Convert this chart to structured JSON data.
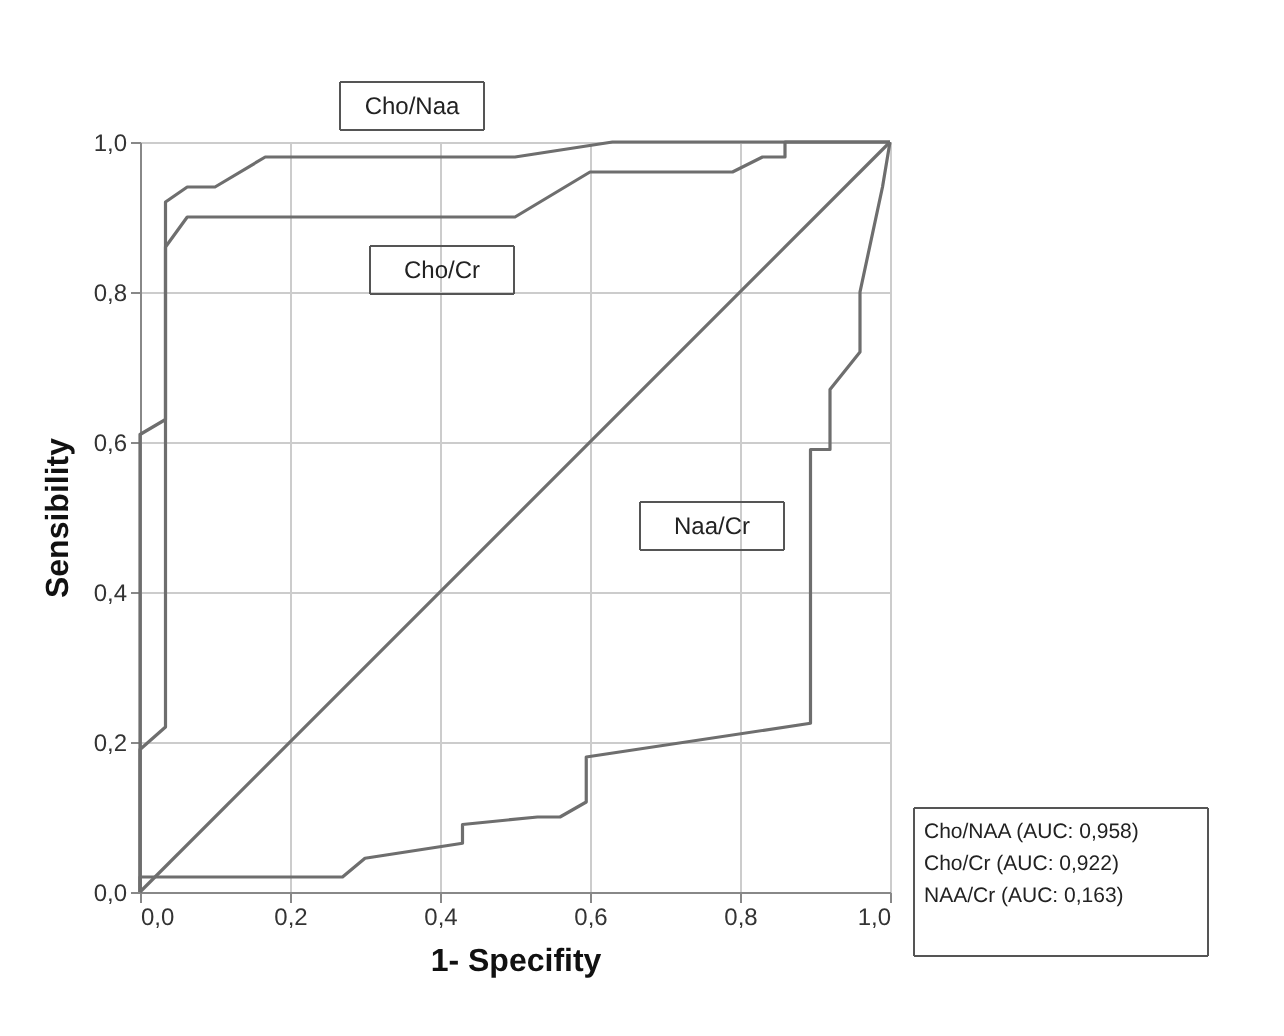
{
  "chart_data": {
    "type": "line",
    "xlabel": "1- Specifity",
    "ylabel": "Sensibility",
    "xlim": [
      0,
      1
    ],
    "ylim": [
      0,
      1
    ],
    "xticks": [
      {
        "value": 0,
        "label": "0,0"
      },
      {
        "value": 0.2,
        "label": "0,2"
      },
      {
        "value": 0.4,
        "label": "0,4"
      },
      {
        "value": 0.6,
        "label": "0,6"
      },
      {
        "value": 0.8,
        "label": "0,8"
      },
      {
        "value": 1,
        "label": "1,0"
      }
    ],
    "yticks": [
      {
        "value": 0,
        "label": "0,0"
      },
      {
        "value": 0.2,
        "label": "0,2"
      },
      {
        "value": 0.4,
        "label": "0,4"
      },
      {
        "value": 0.6,
        "label": "0,6"
      },
      {
        "value": 0.8,
        "label": "0,8"
      },
      {
        "value": 1,
        "label": "1,0"
      }
    ],
    "grid": true,
    "marker": "none",
    "line_style": "solid",
    "series": [
      {
        "name": "Cho/Naa",
        "color": "#6e6e6e",
        "x": [
          0,
          0,
          0.034,
          0.034,
          0.063,
          0.1,
          0.167,
          0.5,
          0.63,
          1
        ],
        "values": [
          0,
          0.61,
          0.63,
          0.92,
          0.94,
          0.94,
          0.98,
          0.98,
          1,
          1
        ]
      },
      {
        "name": "Cho/Cr",
        "color": "#6e6e6e",
        "x": [
          0,
          0,
          0.034,
          0.034,
          0.063,
          0.5,
          0.6,
          0.79,
          0.83,
          0.86,
          0.86,
          1
        ],
        "values": [
          0,
          0.19,
          0.22,
          0.86,
          0.9,
          0.9,
          0.96,
          0.96,
          0.98,
          0.98,
          1,
          1
        ]
      },
      {
        "name": "Naa/Cr",
        "color": "#6e6e6e",
        "x": [
          0,
          0,
          0.27,
          0.3,
          0.43,
          0.43,
          0.53,
          0.56,
          0.595,
          0.595,
          0.894,
          0.894,
          0.92,
          0.92,
          0.96,
          0.96,
          0.99,
          1
        ],
        "values": [
          0,
          0.02,
          0.02,
          0.045,
          0.065,
          0.09,
          0.1,
          0.1,
          0.12,
          0.18,
          0.225,
          0.59,
          0.59,
          0.67,
          0.72,
          0.8,
          0.94,
          1
        ]
      },
      {
        "color": "#6e6e6e",
        "x": [
          0,
          1
        ],
        "values": [
          0,
          1
        ]
      }
    ],
    "annotations": [
      "Cho/NAA (AUC: 0,958)",
      "Cho/Cr     (AUC: 0,922)",
      "NAA/Cr     (AUC: 0,163)"
    ]
  }
}
